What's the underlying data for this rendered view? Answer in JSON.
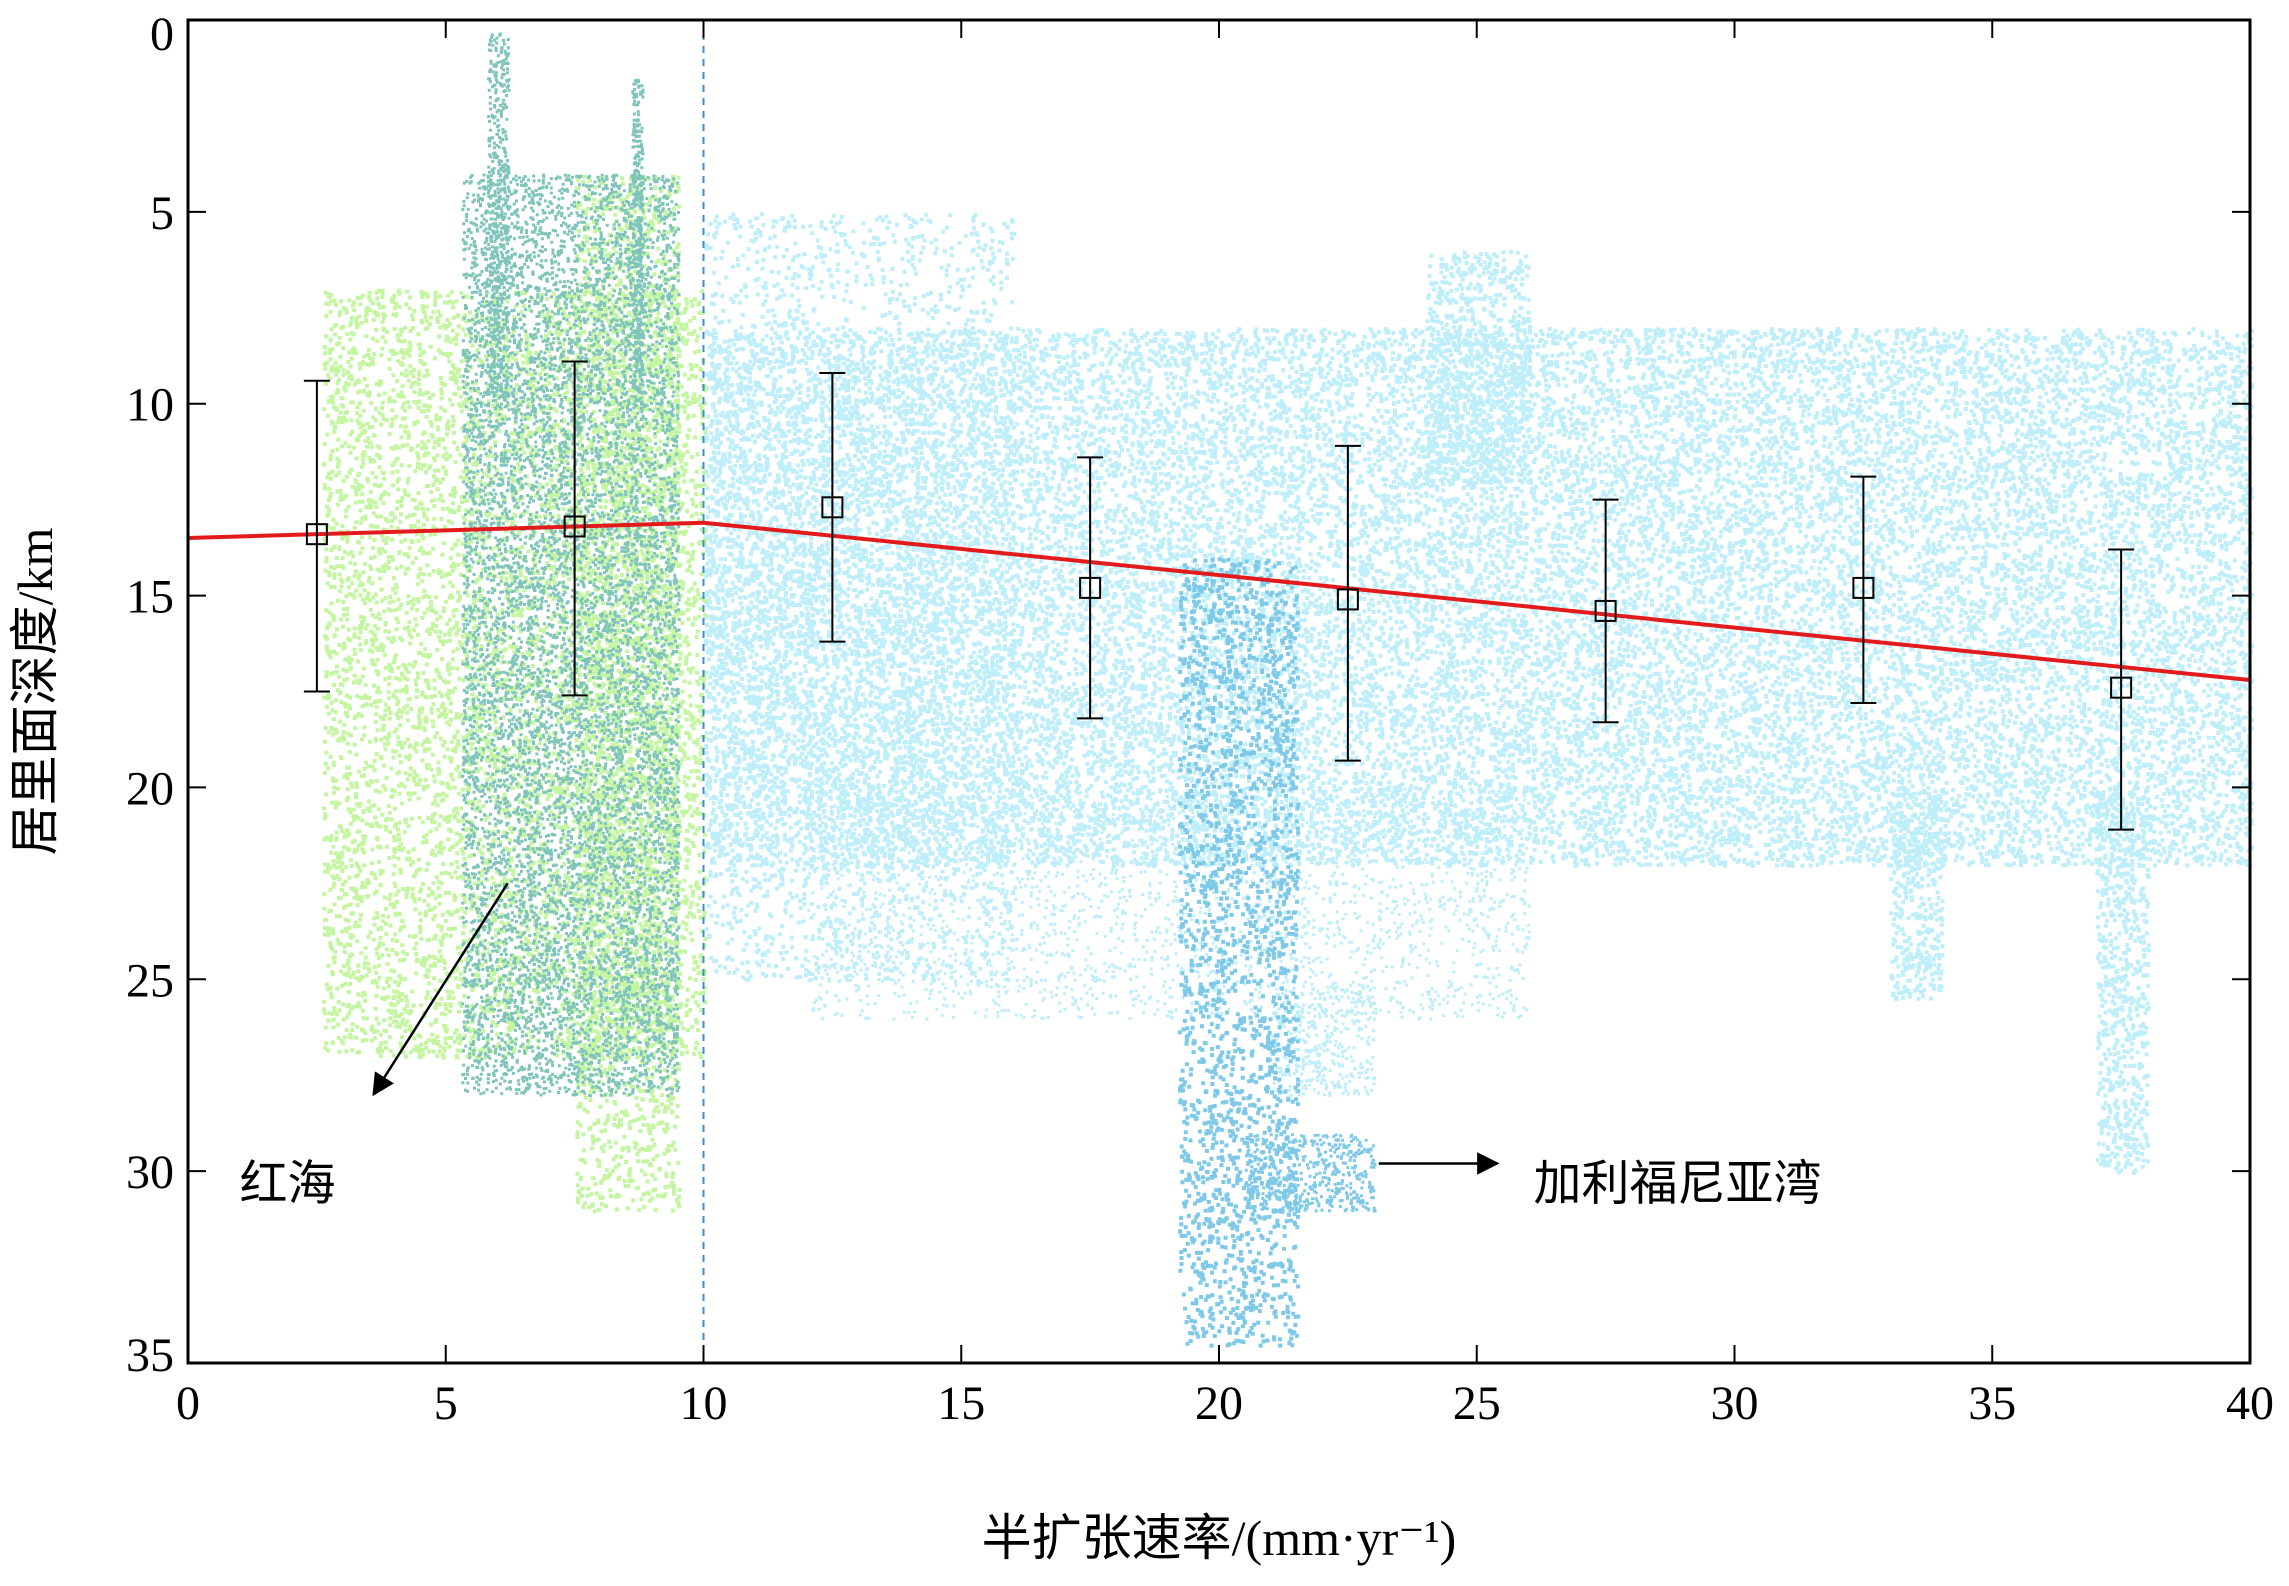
{
  "chart_data": {
    "type": "scatter",
    "xlabel": "半扩张速率/(mm·yr⁻¹)",
    "ylabel": "居里面深度/km",
    "xlim": [
      0,
      40
    ],
    "ylim": [
      0,
      35
    ],
    "y_inverted": true,
    "grid": false,
    "x_ticks": [
      "0",
      "5",
      "10",
      "15",
      "20",
      "25",
      "30",
      "35",
      "40"
    ],
    "y_ticks": [
      "0",
      "5",
      "10",
      "15",
      "20",
      "25",
      "30",
      "35"
    ],
    "divider_x": 10,
    "colors": {
      "red_sea": "#c4f5a0",
      "red_sea_dense": "#7fc4bb",
      "gulf_ca": "#bdeefa",
      "gulf_ca_dense": "#7ec8e8",
      "fit": "#e31a1c",
      "divider": "#3b8fd1"
    },
    "fit_line": [
      {
        "x": 0,
        "y": 13.5
      },
      {
        "x": 10,
        "y": 13.1
      },
      {
        "x": 40,
        "y": 17.2
      }
    ],
    "binned_means": [
      {
        "x": 2.5,
        "y": 13.4,
        "ymin": 9.4,
        "ymax": 17.5
      },
      {
        "x": 7.5,
        "y": 13.2,
        "ymin": 8.9,
        "ymax": 17.6
      },
      {
        "x": 12.5,
        "y": 12.7,
        "ymin": 9.2,
        "ymax": 16.2
      },
      {
        "x": 17.5,
        "y": 14.8,
        "ymin": 11.4,
        "ymax": 18.2
      },
      {
        "x": 22.5,
        "y": 15.1,
        "ymin": 11.1,
        "ymax": 19.3
      },
      {
        "x": 27.5,
        "y": 15.4,
        "ymin": 12.5,
        "ymax": 18.3
      },
      {
        "x": 32.5,
        "y": 14.8,
        "ymin": 11.9,
        "ymax": 17.8
      },
      {
        "x": 37.5,
        "y": 17.4,
        "ymin": 13.8,
        "ymax": 21.1
      }
    ],
    "annotations": [
      {
        "text": "红海",
        "x": 1.0,
        "y": 30.3,
        "arrow_from": [
          6.2,
          22.5
        ],
        "arrow_to": [
          3.6,
          28.0
        ]
      },
      {
        "text": "加利福尼亚湾",
        "x": 26.1,
        "y": 30.3,
        "arrow_from": [
          23.1,
          29.8
        ],
        "arrow_to": [
          25.4,
          29.8
        ]
      }
    ]
  }
}
